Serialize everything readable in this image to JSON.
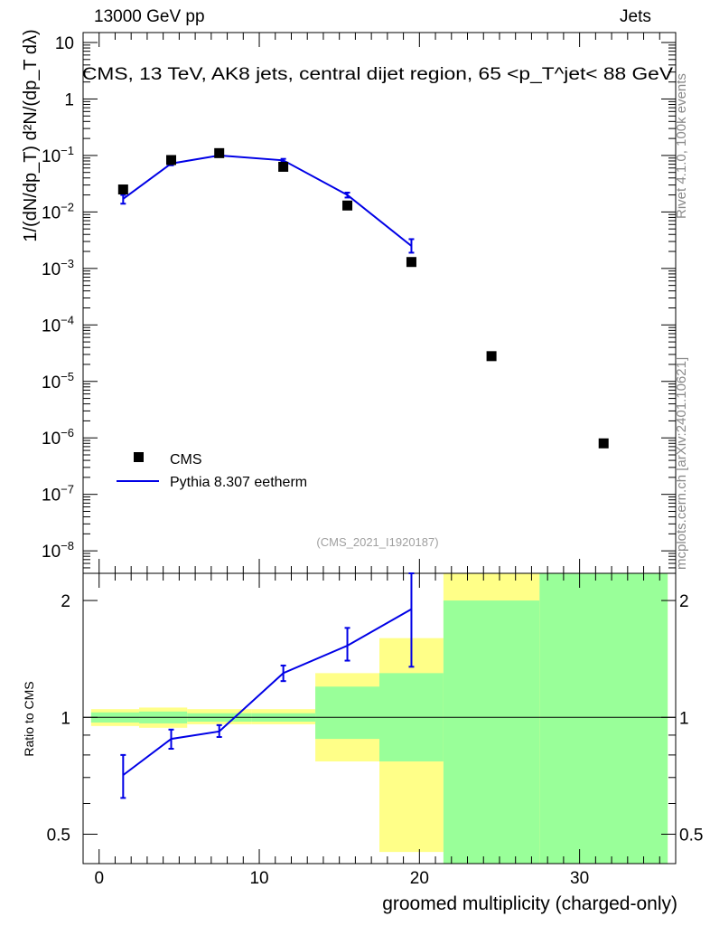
{
  "header": {
    "left": "13000 GeV pp",
    "right": "Jets"
  },
  "side_labels": {
    "rivet": "Rivet 4.1.0,  100k events",
    "mcplots": "mcplots.cern.ch [arXiv:2401.10621]"
  },
  "colors": {
    "mc": "#0000e6",
    "band_yellow": "#ffff88",
    "band_green": "#99ff99",
    "data": "#000000",
    "side_text": "#8a8a8a",
    "analysis_text": "#a0a0a0"
  },
  "chart_data": [
    {
      "type": "scatter",
      "panel": "main",
      "title": "CMS, 13 TeV, AK8 jets, central dijet region, 65 <p_T^{jet}< 88 GeV",
      "analysis_id": "(CMS_2021_I1920187)",
      "ylabel": "1/(dN/dp_T) d²N/(dp_T dλ)",
      "yscale": "log",
      "ylim": [
        4e-09,
        15
      ],
      "xlim": [
        -1,
        36
      ],
      "y_ticks": [
        {
          "v": 1e-08,
          "m": "10",
          "e": "−8"
        },
        {
          "v": 1e-07,
          "m": "10",
          "e": "−7"
        },
        {
          "v": 1e-06,
          "m": "10",
          "e": "−6"
        },
        {
          "v": 1e-05,
          "m": "10",
          "e": "−5"
        },
        {
          "v": 0.0001,
          "m": "10",
          "e": "−4"
        },
        {
          "v": 0.001,
          "m": "10",
          "e": "−3"
        },
        {
          "v": 0.01,
          "m": "10",
          "e": "−2"
        },
        {
          "v": 0.1,
          "m": "10",
          "e": "−1"
        },
        {
          "v": 1,
          "m": "1",
          "e": ""
        },
        {
          "v": 10,
          "m": "10",
          "e": ""
        }
      ],
      "legend": {
        "position": "lower-left",
        "entries": [
          {
            "label": "CMS",
            "kind": "marker"
          },
          {
            "label": "Pythia 8.307 eetherm",
            "kind": "line"
          }
        ]
      },
      "series": [
        {
          "name": "CMS",
          "points": [
            {
              "x": 1.5,
              "y": 0.025
            },
            {
              "x": 4.5,
              "y": 0.083
            },
            {
              "x": 7.5,
              "y": 0.11
            },
            {
              "x": 11.5,
              "y": 0.063
            },
            {
              "x": 15.5,
              "y": 0.013
            },
            {
              "x": 19.5,
              "y": 0.0013
            },
            {
              "x": 24.5,
              "y": 2.8e-05
            },
            {
              "x": 31.5,
              "y": 8e-07
            }
          ]
        },
        {
          "name": "Pythia 8.307 eetherm",
          "points": [
            {
              "x": 1.5,
              "y": 0.017,
              "lo": 0.014,
              "hi": 0.02
            },
            {
              "x": 4.5,
              "y": 0.072,
              "lo": 0.067,
              "hi": 0.077
            },
            {
              "x": 7.5,
              "y": 0.1,
              "lo": 0.096,
              "hi": 0.104
            },
            {
              "x": 11.5,
              "y": 0.082,
              "lo": 0.077,
              "hi": 0.087
            },
            {
              "x": 15.5,
              "y": 0.02,
              "lo": 0.018,
              "hi": 0.022
            },
            {
              "x": 19.5,
              "y": 0.0025,
              "lo": 0.0019,
              "hi": 0.0033
            }
          ]
        }
      ]
    },
    {
      "type": "line",
      "panel": "ratio",
      "ylabel": "Ratio to CMS",
      "xlabel": "groomed multiplicity (charged-only)",
      "yscale": "log",
      "ylim": [
        0.42,
        2.35
      ],
      "xlim": [
        -1,
        36
      ],
      "y_ticks": [
        0.5,
        1,
        2
      ],
      "x_ticks": [
        0,
        10,
        20,
        30
      ],
      "reference_line": 1,
      "bands": [
        {
          "x0": -0.5,
          "x1": 2.5,
          "yellow": [
            0.95,
            1.05
          ],
          "green": [
            0.97,
            1.03
          ]
        },
        {
          "x0": 2.5,
          "x1": 5.5,
          "yellow": [
            0.94,
            1.06
          ],
          "green": [
            0.965,
            1.035
          ]
        },
        {
          "x0": 5.5,
          "x1": 9.5,
          "yellow": [
            0.96,
            1.05
          ],
          "green": [
            0.975,
            1.025
          ]
        },
        {
          "x0": 9.5,
          "x1": 13.5,
          "yellow": [
            0.96,
            1.05
          ],
          "green": [
            0.975,
            1.025
          ]
        },
        {
          "x0": 13.5,
          "x1": 17.5,
          "yellow": [
            0.77,
            1.3
          ],
          "green": [
            0.88,
            1.2
          ]
        },
        {
          "x0": 17.5,
          "x1": 21.5,
          "yellow": [
            0.45,
            1.6
          ],
          "green": [
            0.77,
            1.3
          ]
        },
        {
          "x0": 21.5,
          "x1": 27.5,
          "yellow": [
            0.42,
            2.35
          ],
          "green": [
            0.42,
            2.0
          ]
        },
        {
          "x0": 27.5,
          "x1": 35.5,
          "yellow": [
            0.42,
            2.35
          ],
          "green": [
            0.42,
            2.35
          ]
        }
      ],
      "series": [
        {
          "name": "Pythia 8.307 eetherm",
          "points": [
            {
              "x": 1.5,
              "y": 0.71,
              "lo": 0.62,
              "hi": 0.8
            },
            {
              "x": 4.5,
              "y": 0.88,
              "lo": 0.83,
              "hi": 0.93
            },
            {
              "x": 7.5,
              "y": 0.92,
              "lo": 0.89,
              "hi": 0.955
            },
            {
              "x": 11.5,
              "y": 1.3,
              "lo": 1.24,
              "hi": 1.36
            },
            {
              "x": 15.5,
              "y": 1.53,
              "lo": 1.4,
              "hi": 1.7
            },
            {
              "x": 19.5,
              "y": 1.9,
              "lo": 1.35,
              "hi": 2.35
            }
          ]
        }
      ]
    }
  ]
}
